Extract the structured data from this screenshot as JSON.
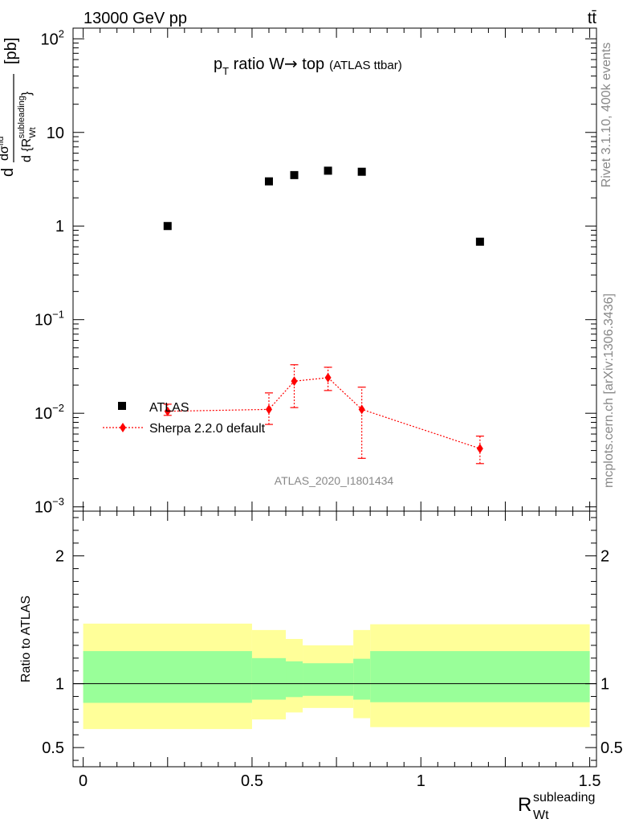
{
  "header": {
    "energy_label": "13000 GeV pp",
    "process_label": "tt̄"
  },
  "side_labels": {
    "rivet": "Rivet 3.1.10,  400k events",
    "mcplots": "mcplots.cern.ch [arXiv:1306.3436]"
  },
  "chart_data": [
    {
      "type": "scatter",
      "panel": "main",
      "title": {
        "p": "p",
        "p_sub": "T",
        "main": " ratio W",
        "arrow": "→",
        "after": " top",
        "small": "(ATLAS ttbar)"
      },
      "ylabel": "d σ / d {R_Wt^subleading} [pb]",
      "y_scale": "log",
      "ylim": [
        0.0009,
        130
      ],
      "xlim": [
        -0.03,
        1.52
      ],
      "y_ticks": [
        {
          "value": 0.001,
          "base": "10",
          "exp": "−3"
        },
        {
          "value": 0.01,
          "base": "10",
          "exp": "−2"
        },
        {
          "value": 0.1,
          "base": "10",
          "exp": "−1"
        },
        {
          "value": 1,
          "base": "1",
          "exp": ""
        },
        {
          "value": 10,
          "base": "10",
          "exp": ""
        },
        {
          "value": 100,
          "base": "10",
          "exp": "2"
        }
      ],
      "bins": [
        0.0,
        0.5,
        0.6,
        0.65,
        0.8,
        0.85,
        1.5
      ],
      "legend": {
        "position": "lower-left"
      },
      "watermark": "ATLAS_2020_I1801434",
      "series": [
        {
          "name": "ATLAS",
          "color": "#000000",
          "marker": "square",
          "x": [
            0.25,
            0.55,
            0.625,
            0.725,
            0.825,
            1.175
          ],
          "y": [
            1.0,
            3.0,
            3.5,
            3.9,
            3.8,
            0.68
          ]
        },
        {
          "name": "Sherpa 2.2.0 default",
          "color": "#ff0000",
          "marker": "diamond",
          "line": "dotted",
          "x": [
            0.25,
            0.55,
            0.625,
            0.725,
            0.825,
            1.175
          ],
          "y": [
            0.0105,
            0.011,
            0.022,
            0.024,
            0.011,
            0.0042
          ],
          "y_err_low": [
            0.0095,
            0.0076,
            0.0115,
            0.0175,
            0.0033,
            0.0029
          ],
          "y_err_high": [
            0.0125,
            0.0165,
            0.033,
            0.031,
            0.019,
            0.0057
          ]
        }
      ]
    },
    {
      "type": "area",
      "panel": "ratio",
      "ylabel": "Ratio to ATLAS",
      "xlabel": "R",
      "xlabel_sub": "Wt",
      "xlabel_sup": "subleading",
      "ylim": [
        0.35,
        2.35
      ],
      "y_ticks": [
        "0.5",
        "1",
        "2"
      ],
      "x_ticks": [
        "0",
        "0.5",
        "1",
        "1.5"
      ],
      "reference_line": 1,
      "bands": {
        "bins": [
          0.0,
          0.5,
          0.6,
          0.65,
          0.8,
          0.85,
          1.5
        ],
        "inner_color": "#99ff99",
        "outer_color": "#ffff99",
        "inner_low": [
          0.85,
          0.875,
          0.895,
          0.905,
          0.875,
          0.855
        ],
        "inner_high": [
          1.255,
          1.2,
          1.175,
          1.16,
          1.195,
          1.255
        ],
        "outer_low": [
          0.645,
          0.72,
          0.775,
          0.81,
          0.73,
          0.66
        ],
        "outer_high": [
          1.47,
          1.42,
          1.35,
          1.3,
          1.42,
          1.465
        ]
      }
    }
  ]
}
